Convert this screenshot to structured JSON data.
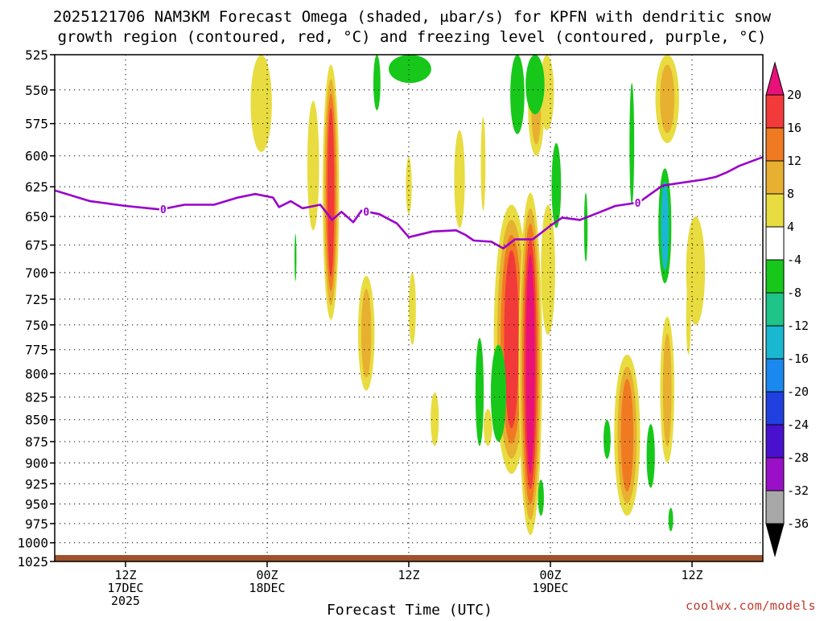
{
  "title_line1": "2025121706 NAM3KM Forecast Omega (shaded, μbar/s) for KPFN with dendritic snow",
  "title_line2": "growth region (contoured, red, °C) and freezing level (contoured, purple, °C)",
  "credit": "coolwx.com/models",
  "chart_data": {
    "type": "heatmap",
    "xlabel": "Forecast Time (UTC)",
    "ylabel": "",
    "y_scale": "log-pressure",
    "y_unit": "hPa",
    "ylim": [
      1025,
      525
    ],
    "x_unit": "hours from 2025-12-17 00Z",
    "xlim": [
      6,
      66
    ],
    "y_ticks": [
      525,
      550,
      575,
      600,
      625,
      650,
      675,
      700,
      725,
      750,
      775,
      800,
      825,
      850,
      875,
      900,
      925,
      950,
      975,
      1000,
      1025
    ],
    "x_ticks": [
      {
        "hour": 12,
        "lines": [
          "12Z",
          "17DEC",
          "2025"
        ]
      },
      {
        "hour": 24,
        "lines": [
          "00Z",
          "18DEC"
        ]
      },
      {
        "hour": 36,
        "lines": [
          "12Z"
        ]
      },
      {
        "hour": 48,
        "lines": [
          "00Z",
          "19DEC"
        ]
      },
      {
        "hour": 60,
        "lines": [
          "12Z"
        ]
      }
    ],
    "grid": true,
    "colorbar": {
      "unit": "μbar/s",
      "labels": [
        "20",
        "16",
        "12",
        "8",
        "4",
        "-4",
        "-8",
        "-12",
        "-16",
        "-20",
        "-24",
        "-28",
        "-32",
        "-36"
      ],
      "bins": [
        {
          "lo": 20,
          "hi": null,
          "color": "#e8117a"
        },
        {
          "lo": 16,
          "hi": 20,
          "color": "#f23a3a"
        },
        {
          "lo": 12,
          "hi": 16,
          "color": "#f07a22"
        },
        {
          "lo": 8,
          "hi": 12,
          "color": "#e8b030"
        },
        {
          "lo": 4,
          "hi": 8,
          "color": "#e8dc40"
        },
        {
          "lo": -4,
          "hi": 4,
          "color": "#ffffff"
        },
        {
          "lo": -8,
          "hi": -4,
          "color": "#17c81a"
        },
        {
          "lo": -12,
          "hi": -8,
          "color": "#1fc488"
        },
        {
          "lo": -16,
          "hi": -12,
          "color": "#1ab8d0"
        },
        {
          "lo": -20,
          "hi": -16,
          "color": "#1a88ee"
        },
        {
          "lo": -24,
          "hi": -20,
          "color": "#2040e0"
        },
        {
          "lo": -28,
          "hi": -24,
          "color": "#4a10d0"
        },
        {
          "lo": -32,
          "hi": -28,
          "color": "#9a10c8"
        },
        {
          "lo": -36,
          "hi": -32,
          "color": "#a8a8a8"
        },
        {
          "lo": null,
          "hi": -36,
          "color": "#000000"
        }
      ]
    },
    "freezing_level": {
      "name": "0°C",
      "label": "0",
      "color": "#9900cc",
      "label_hours": [
        15.2,
        32.4,
        55.4
      ],
      "points": [
        [
          6,
          628
        ],
        [
          9,
          637
        ],
        [
          12,
          641
        ],
        [
          15,
          644
        ],
        [
          17,
          640
        ],
        [
          19.5,
          640
        ],
        [
          21.5,
          634
        ],
        [
          23,
          631
        ],
        [
          24.5,
          634
        ],
        [
          25,
          642
        ],
        [
          26,
          637
        ],
        [
          27,
          643
        ],
        [
          28.5,
          640
        ],
        [
          29.5,
          653
        ],
        [
          30.3,
          646
        ],
        [
          31.3,
          655
        ],
        [
          32,
          645
        ],
        [
          33.5,
          648
        ],
        [
          35,
          656
        ],
        [
          36,
          668
        ],
        [
          38,
          663
        ],
        [
          40,
          662
        ],
        [
          40.8,
          666
        ],
        [
          41.5,
          671
        ],
        [
          43,
          672
        ],
        [
          44,
          678
        ],
        [
          45,
          670
        ],
        [
          46.5,
          670
        ],
        [
          48,
          658
        ],
        [
          49,
          651
        ],
        [
          50.5,
          653
        ],
        [
          52,
          647
        ],
        [
          53.5,
          641
        ],
        [
          55.5,
          638
        ],
        [
          57.5,
          624
        ],
        [
          61,
          619
        ],
        [
          62,
          617
        ],
        [
          63,
          613
        ],
        [
          64,
          608
        ],
        [
          66,
          601
        ]
      ]
    },
    "omega_features": [
      {
        "hour": 23.5,
        "p_top": 525,
        "p_bottom": 597,
        "half_width_h": 0.9,
        "levels": [
          4
        ]
      },
      {
        "hour": 27.9,
        "p_top": 558,
        "p_bottom": 662,
        "half_width_h": 0.5,
        "levels": [
          4
        ]
      },
      {
        "hour": 29.4,
        "p_top": 532,
        "p_bottom": 745,
        "half_width_h": 0.7,
        "levels": [
          4,
          8,
          12,
          16
        ]
      },
      {
        "hour": 32.4,
        "p_top": 703,
        "p_bottom": 818,
        "half_width_h": 0.7,
        "levels": [
          4,
          8
        ]
      },
      {
        "hour": 36.0,
        "p_top": 601,
        "p_bottom": 648,
        "half_width_h": 0.25,
        "levels": [
          4
        ]
      },
      {
        "hour": 40.3,
        "p_top": 580,
        "p_bottom": 660,
        "half_width_h": 0.45,
        "levels": [
          4
        ]
      },
      {
        "hour": 44.7,
        "p_top": 640,
        "p_bottom": 913,
        "half_width_h": 1.5,
        "levels": [
          4,
          8,
          12,
          16
        ]
      },
      {
        "hour": 46.3,
        "p_top": 630,
        "p_bottom": 990,
        "half_width_h": 1.0,
        "levels": [
          4,
          8,
          12,
          16,
          20
        ]
      },
      {
        "hour": 46.8,
        "p_top": 525,
        "p_bottom": 600,
        "half_width_h": 0.7,
        "levels": [
          4,
          8
        ]
      },
      {
        "hour": 47.8,
        "p_top": 640,
        "p_bottom": 760,
        "half_width_h": 0.6,
        "levels": [
          4
        ]
      },
      {
        "hour": 38.2,
        "p_top": 820,
        "p_bottom": 880,
        "half_width_h": 0.35,
        "levels": [
          4
        ]
      },
      {
        "hour": 54.5,
        "p_top": 780,
        "p_bottom": 965,
        "half_width_h": 1.1,
        "levels": [
          4,
          8,
          12
        ]
      },
      {
        "hour": 60.3,
        "p_top": 650,
        "p_bottom": 750,
        "half_width_h": 0.8,
        "levels": [
          4
        ]
      },
      {
        "hour": 57.9,
        "p_top": 525,
        "p_bottom": 590,
        "half_width_h": 1.0,
        "levels": [
          4,
          8
        ]
      },
      {
        "hour": 57.9,
        "p_top": 742,
        "p_bottom": 900,
        "half_width_h": 0.6,
        "levels": [
          4,
          8
        ]
      },
      {
        "hour": 59.7,
        "p_top": 710,
        "p_bottom": 780,
        "half_width_h": 0.2,
        "levels": [
          4
        ]
      },
      {
        "hour": 42.3,
        "p_top": 570,
        "p_bottom": 645,
        "half_width_h": 0.2,
        "levels": [
          4
        ]
      },
      {
        "hour": 42.7,
        "p_top": 838,
        "p_bottom": 880,
        "half_width_h": 0.35,
        "levels": [
          4
        ]
      },
      {
        "hour": 47.7,
        "p_top": 525,
        "p_bottom": 580,
        "half_width_h": 0.6,
        "levels": [
          4
        ]
      },
      {
        "hour": 36.3,
        "p_top": 700,
        "p_bottom": 770,
        "half_width_h": 0.3,
        "levels": [
          4
        ]
      }
    ],
    "omega_negative": [
      {
        "hour": 33.3,
        "p_top": 525,
        "p_bottom": 565,
        "half_width_h": 0.3,
        "levels": [
          -4
        ]
      },
      {
        "hour": 36.1,
        "p_top": 525,
        "p_bottom": 545,
        "half_width_h": 1.8,
        "levels": [
          -4
        ]
      },
      {
        "hour": 42.0,
        "p_top": 763,
        "p_bottom": 880,
        "half_width_h": 0.35,
        "levels": [
          -4
        ]
      },
      {
        "hour": 43.6,
        "p_top": 770,
        "p_bottom": 875,
        "half_width_h": 0.65,
        "levels": [
          -4
        ]
      },
      {
        "hour": 45.2,
        "p_top": 525,
        "p_bottom": 583,
        "half_width_h": 0.6,
        "levels": [
          -4
        ]
      },
      {
        "hour": 46.7,
        "p_top": 525,
        "p_bottom": 568,
        "half_width_h": 0.8,
        "levels": [
          -4
        ]
      },
      {
        "hour": 48.5,
        "p_top": 590,
        "p_bottom": 660,
        "half_width_h": 0.4,
        "levels": [
          -4
        ]
      },
      {
        "hour": 47.2,
        "p_top": 920,
        "p_bottom": 965,
        "half_width_h": 0.25,
        "levels": [
          -4
        ]
      },
      {
        "hour": 54.9,
        "p_top": 545,
        "p_bottom": 640,
        "half_width_h": 0.2,
        "levels": [
          -4
        ]
      },
      {
        "hour": 57.7,
        "p_top": 610,
        "p_bottom": 710,
        "half_width_h": 0.55,
        "levels": [
          -4,
          -12
        ]
      },
      {
        "hour": 56.5,
        "p_top": 855,
        "p_bottom": 930,
        "half_width_h": 0.35,
        "levels": [
          -4
        ]
      },
      {
        "hour": 52.8,
        "p_top": 850,
        "p_bottom": 895,
        "half_width_h": 0.3,
        "levels": [
          -4
        ]
      },
      {
        "hour": 51.0,
        "p_top": 630,
        "p_bottom": 690,
        "half_width_h": 0.15,
        "levels": [
          -4
        ]
      },
      {
        "hour": 58.2,
        "p_top": 955,
        "p_bottom": 985,
        "half_width_h": 0.2,
        "levels": [
          -4
        ]
      },
      {
        "hour": 26.4,
        "p_top": 665,
        "p_bottom": 708,
        "half_width_h": 0.07,
        "levels": [
          -4
        ]
      }
    ],
    "ground_color": "#a0522d"
  }
}
